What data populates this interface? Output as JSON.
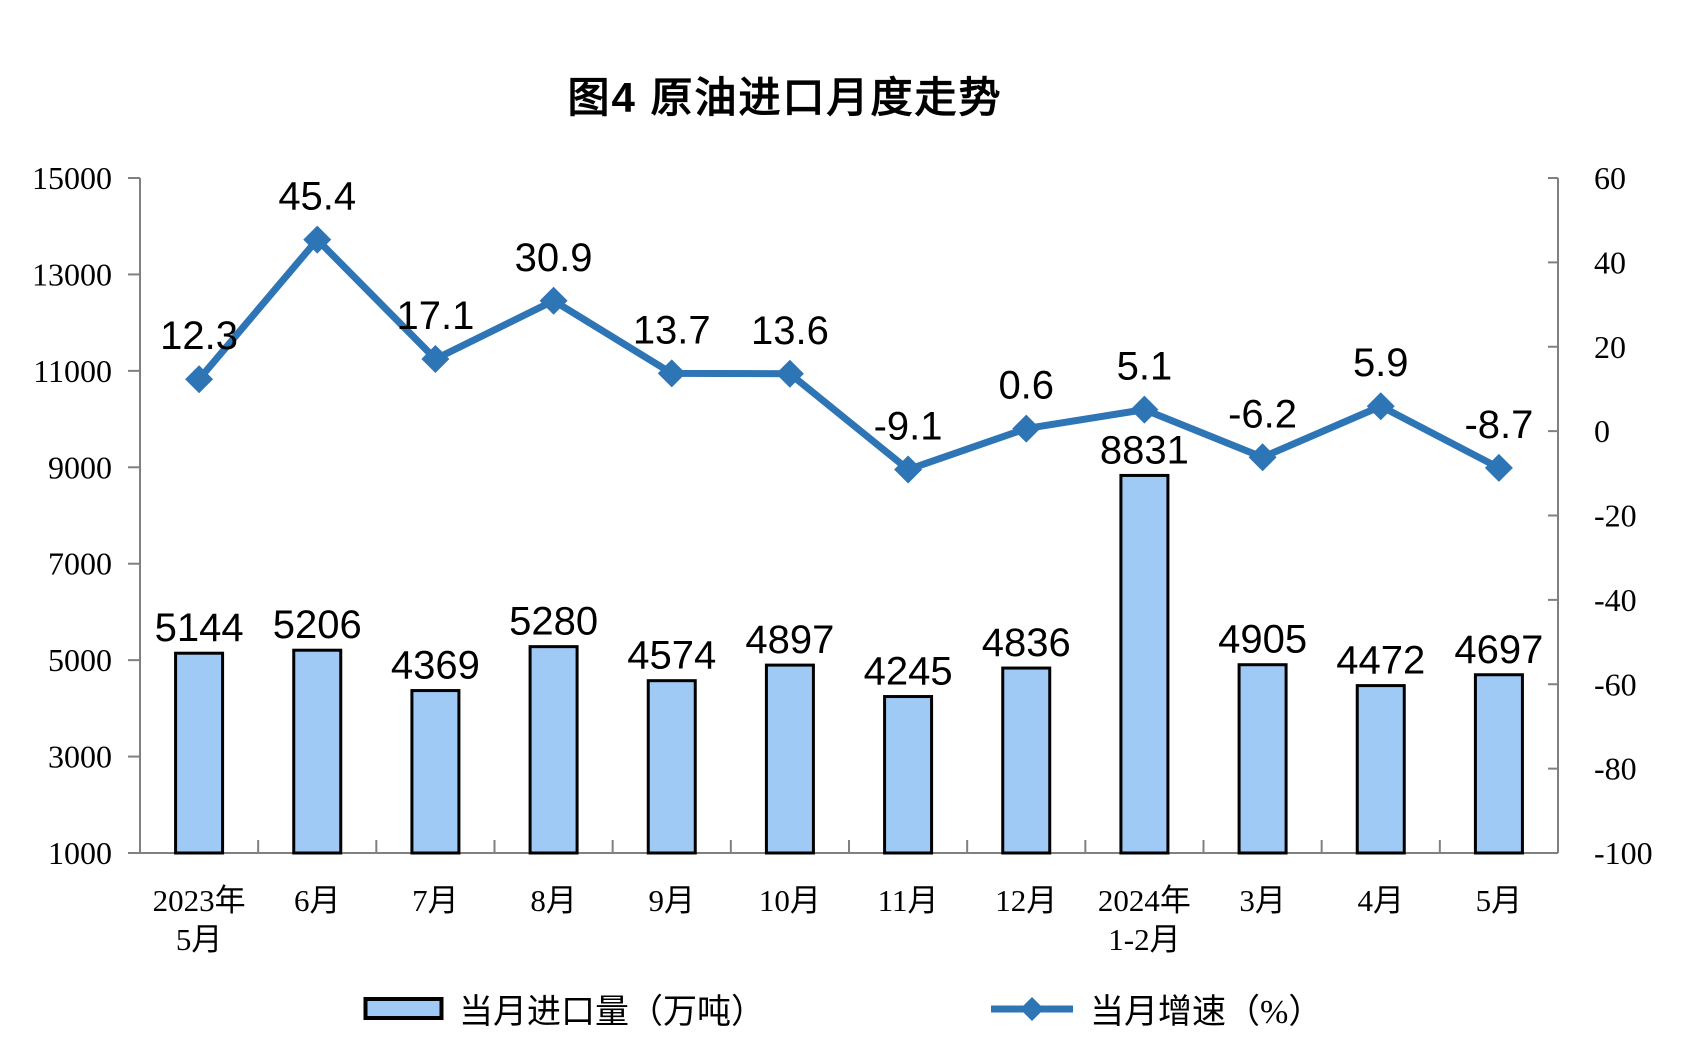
{
  "title": "图4 原油进口月度走势",
  "colors": {
    "bar_fill": "#9FCAF6",
    "bar_stroke": "#000000",
    "line": "#2E75B6",
    "axis": "#808080",
    "text": "#000000"
  },
  "chart_data": {
    "type": "bar+line",
    "title": "图4 原油进口月度走势",
    "grid": false,
    "legend_position": "bottom",
    "categories": [
      [
        "2023年",
        "5月"
      ],
      [
        "6月"
      ],
      [
        "7月"
      ],
      [
        "8月"
      ],
      [
        "9月"
      ],
      [
        "10月"
      ],
      [
        "11月"
      ],
      [
        "12月"
      ],
      [
        "2024年",
        "1-2月"
      ],
      [
        "3月"
      ],
      [
        "4月"
      ],
      [
        "5月"
      ]
    ],
    "series": [
      {
        "name": "当月进口量（万吨）",
        "type": "bar",
        "axis": "left",
        "values": [
          5144,
          5206,
          4369,
          5280,
          4574,
          4897,
          4245,
          4836,
          8831,
          4905,
          4472,
          4697
        ]
      },
      {
        "name": "当月增速（%）",
        "type": "line",
        "axis": "right",
        "values": [
          12.3,
          45.4,
          17.1,
          30.9,
          13.7,
          13.6,
          -9.1,
          0.6,
          5.1,
          -6.2,
          5.9,
          -8.7
        ]
      }
    ],
    "left_axis": {
      "min": 1000,
      "max": 15000,
      "ticks": [
        15000,
        13000,
        11000,
        9000,
        7000,
        5000,
        3000,
        1000
      ]
    },
    "right_axis": {
      "min": -100,
      "max": 60,
      "ticks": [
        60,
        40,
        20,
        0,
        -20,
        -40,
        -60,
        -80,
        -100
      ]
    }
  }
}
